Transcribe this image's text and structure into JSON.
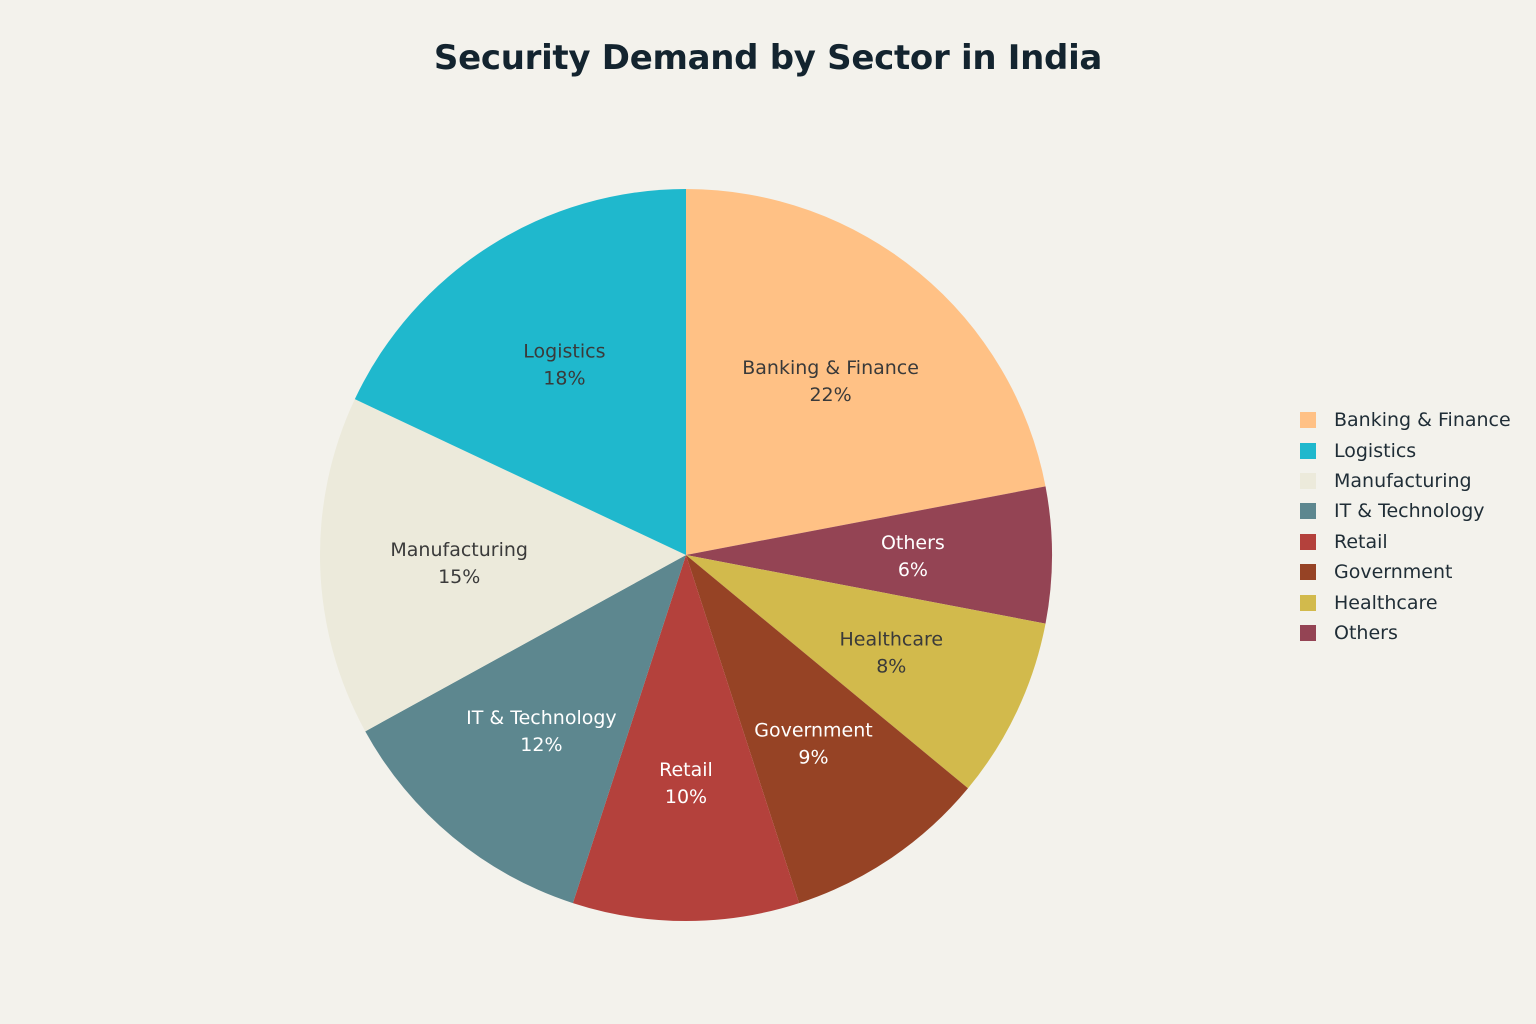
{
  "chart_data": {
    "type": "pie",
    "title": "Security Demand by Sector in India",
    "categories": [
      "Banking & Finance",
      "Logistics",
      "Manufacturing",
      "IT & Technology",
      "Retail",
      "Government",
      "Healthcare",
      "Others"
    ],
    "values": [
      22,
      18,
      15,
      12,
      10,
      9,
      8,
      6
    ],
    "value_labels": [
      "22%",
      "18%",
      "15%",
      "12%",
      "10%",
      "9%",
      "8%",
      "6%"
    ],
    "colors": [
      "#ffc185",
      "#1fb8cd",
      "#eceadb",
      "#5d878f",
      "#b4413c",
      "#964325",
      "#d2ba4c",
      "#944454"
    ],
    "label_colors": [
      "#3a3a3a",
      "#3a3a3a",
      "#3a3a3a",
      "#ffffff",
      "#ffffff",
      "#ffffff",
      "#3a3a3a",
      "#ffffff"
    ],
    "legend_position": "right",
    "slice_order": [
      "Banking & Finance",
      "Others",
      "Healthcare",
      "Government",
      "Retail",
      "IT & Technology",
      "Manufacturing",
      "Logistics"
    ],
    "start_angle": "12 o'clock",
    "direction": "clockwise"
  },
  "legend": {
    "items": [
      {
        "label": "Banking & Finance",
        "color": "#ffc185"
      },
      {
        "label": "Logistics",
        "color": "#1fb8cd"
      },
      {
        "label": "Manufacturing",
        "color": "#eceadb"
      },
      {
        "label": "IT & Technology",
        "color": "#5d878f"
      },
      {
        "label": "Retail",
        "color": "#b4413c"
      },
      {
        "label": "Government",
        "color": "#964325"
      },
      {
        "label": "Healthcare",
        "color": "#d2ba4c"
      },
      {
        "label": "Others",
        "color": "#944454"
      }
    ]
  }
}
